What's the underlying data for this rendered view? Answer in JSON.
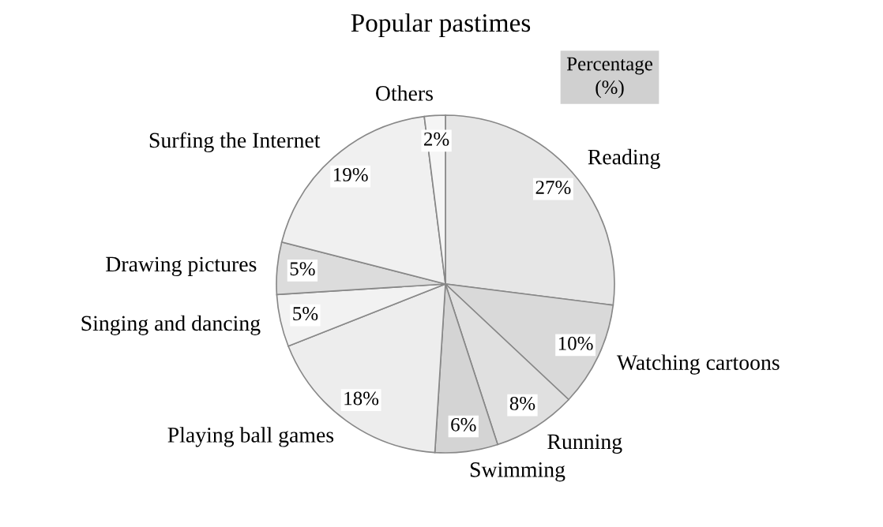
{
  "chart_data": {
    "type": "pie",
    "title": "Popular pastimes",
    "categories": [
      "Reading",
      "Watching cartoons",
      "Running",
      "Swimming",
      "Playing ball games",
      "Singing and dancing",
      "Drawing pictures",
      "Surfing the Internet",
      "Others"
    ],
    "values": [
      27,
      10,
      8,
      6,
      18,
      5,
      5,
      19,
      2
    ],
    "value_labels": [
      "27%",
      "10%",
      "8%",
      "6%",
      "18%",
      "5%",
      "5%",
      "19%",
      "2%"
    ],
    "colors": [
      "#e6e6e6",
      "#d9d9d9",
      "#e0e0e0",
      "#d4d4d4",
      "#ededed",
      "#f2f2f2",
      "#dcdcdc",
      "#f0f0f0",
      "#f5f5f5"
    ],
    "annotations": [
      "Percentage\n(%)"
    ]
  }
}
